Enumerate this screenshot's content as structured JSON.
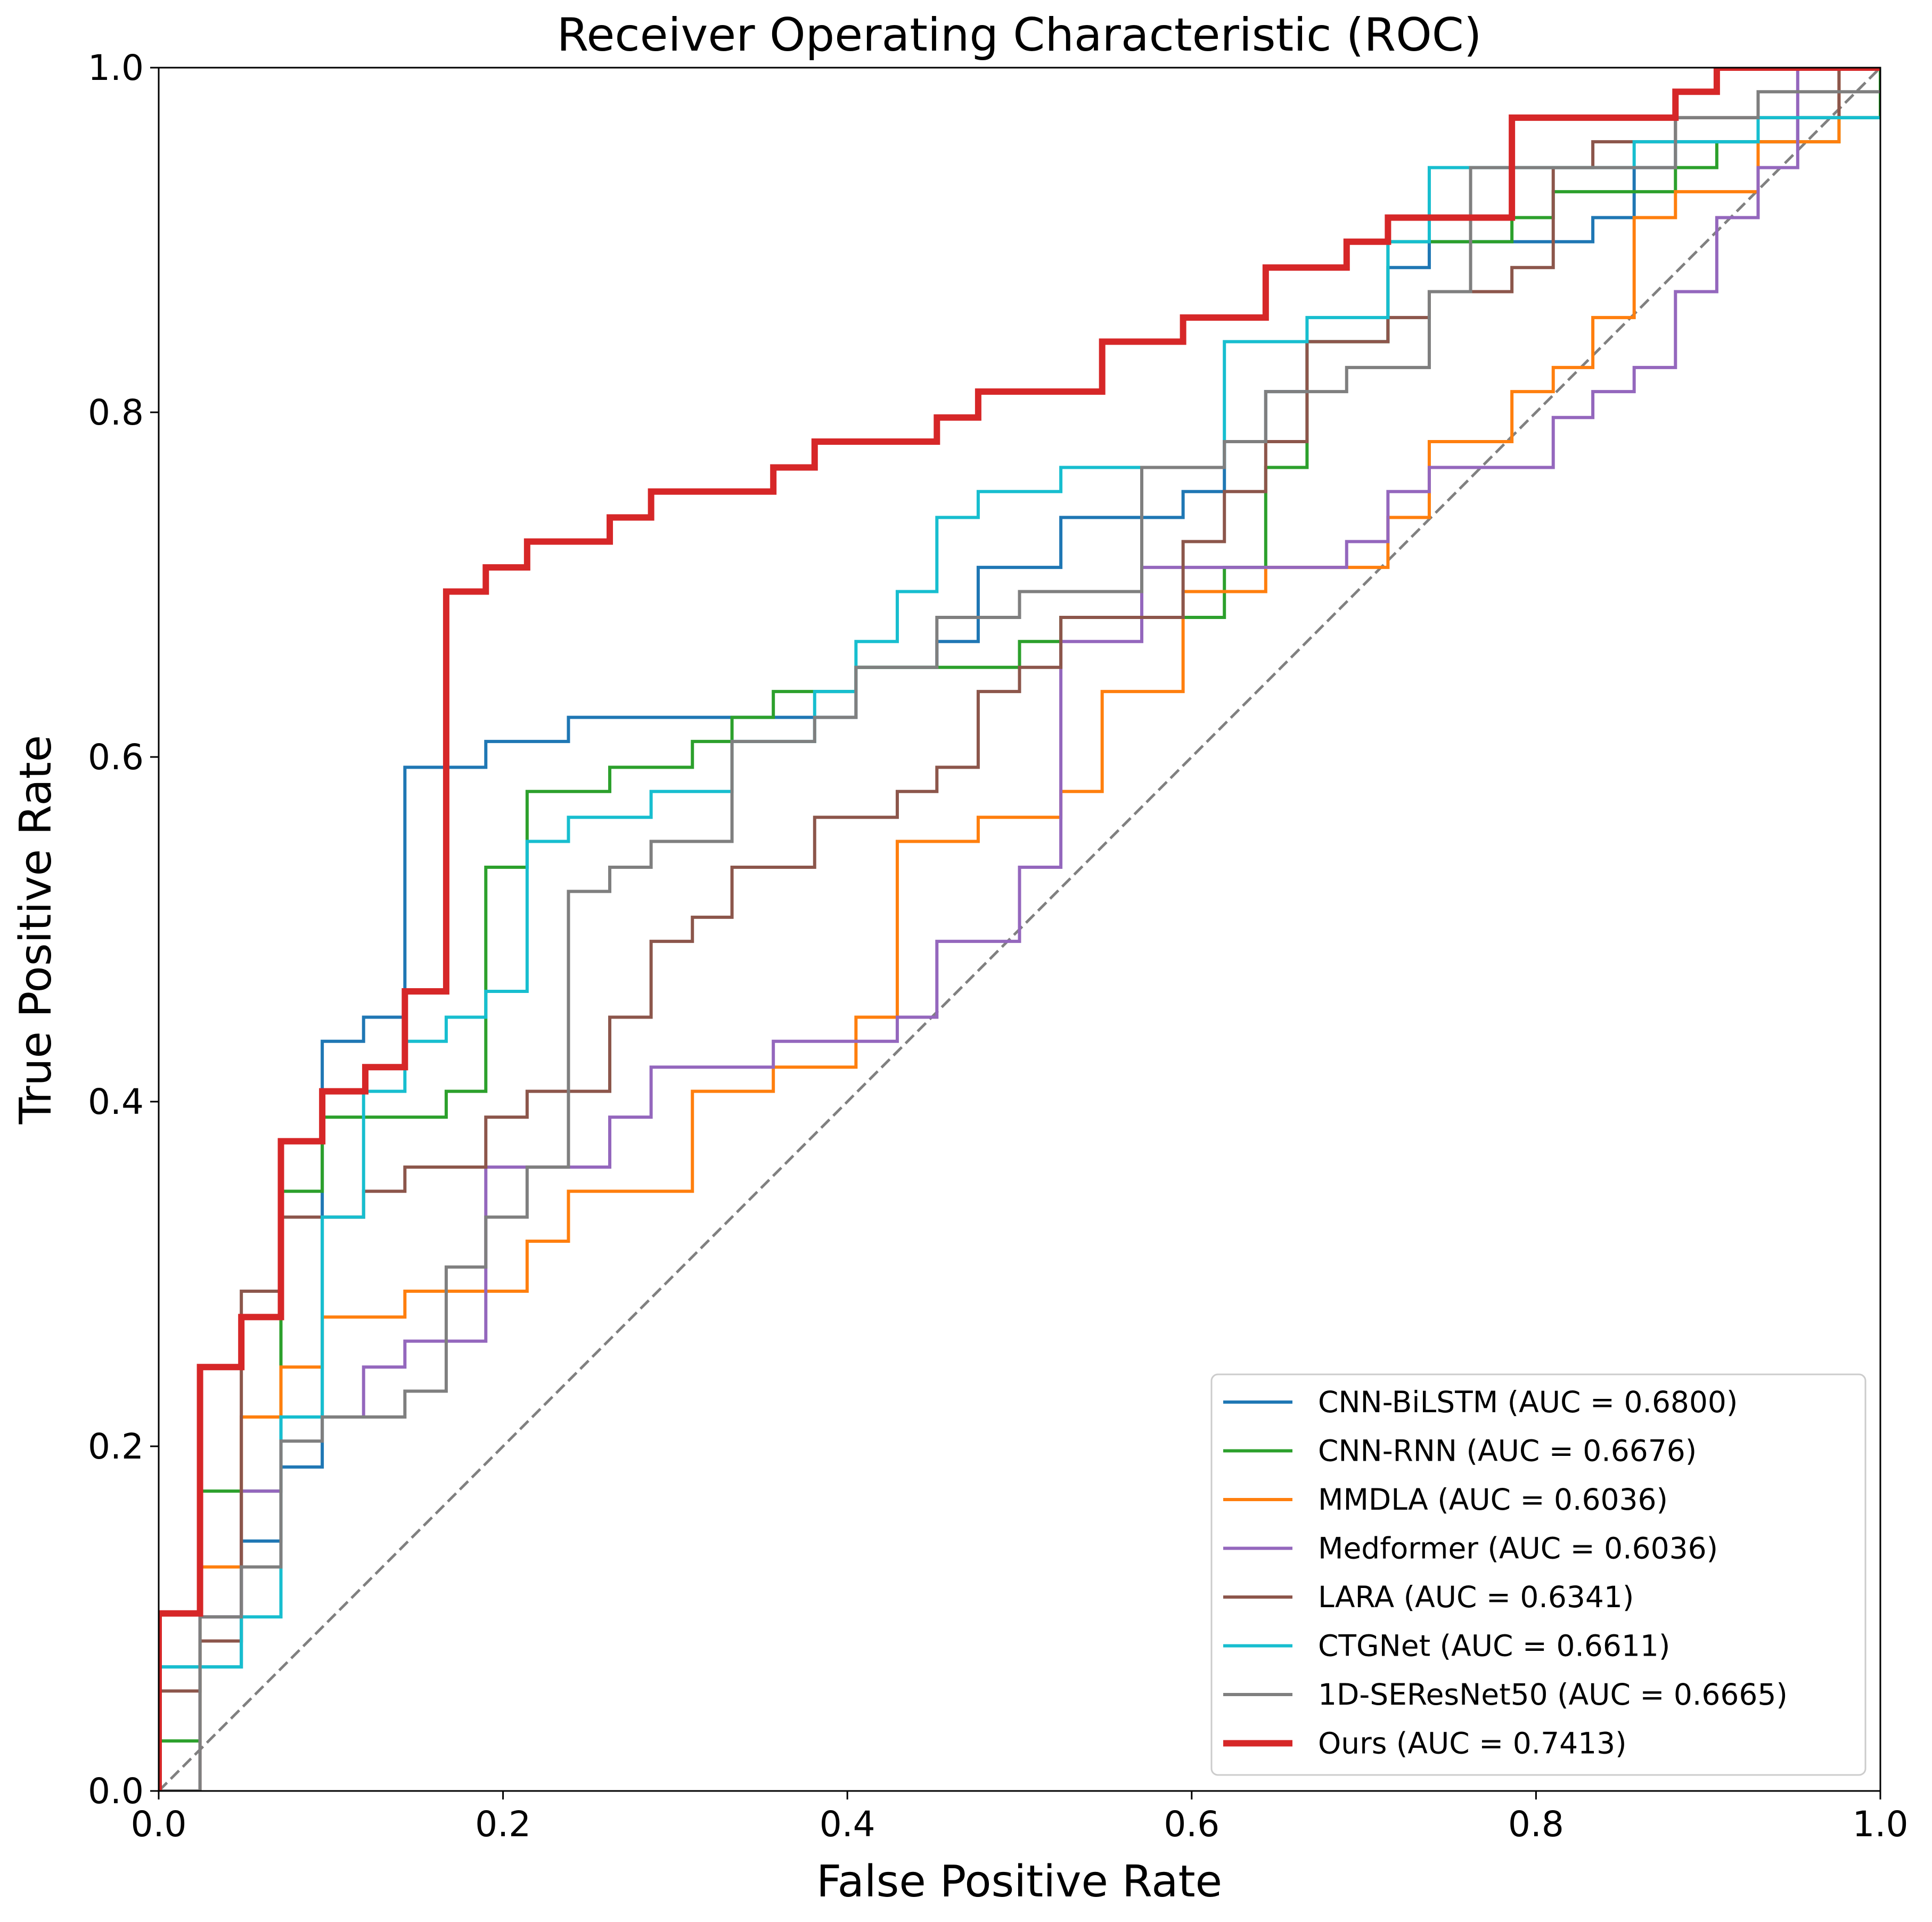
{
  "chart_data": {
    "type": "line",
    "title": "Receiver Operating Characteristic (ROC)",
    "xlabel": "False Positive Rate",
    "ylabel": "True Positive Rate",
    "xlim": [
      0,
      1
    ],
    "ylim": [
      0,
      1
    ],
    "xticks": [
      "0.0",
      "0.2",
      "0.4",
      "0.6",
      "0.8",
      "1.0"
    ],
    "yticks": [
      "0.0",
      "0.2",
      "0.4",
      "0.6",
      "0.8",
      "1.0"
    ],
    "grid": false,
    "legend_position": "lower-right",
    "diagonal": {
      "style": "dashed",
      "color": "#808080"
    },
    "series": [
      {
        "name": "CNN-BiLSTM (AUC = 0.6800)",
        "color": "#1f77b4",
        "width": "normal",
        "points": [
          [
            0,
            0
          ],
          [
            0,
            0.072
          ],
          [
            0.048,
            0.145
          ],
          [
            0.071,
            0.188
          ],
          [
            0.095,
            0.435
          ],
          [
            0.119,
            0.449
          ],
          [
            0.143,
            0.594
          ],
          [
            0.19,
            0.609
          ],
          [
            0.238,
            0.623
          ],
          [
            0.405,
            0.652
          ],
          [
            0.452,
            0.667
          ],
          [
            0.476,
            0.71
          ],
          [
            0.524,
            0.739
          ],
          [
            0.595,
            0.754
          ],
          [
            0.619,
            0.783
          ],
          [
            0.643,
            0.812
          ],
          [
            0.667,
            0.841
          ],
          [
            0.714,
            0.884
          ],
          [
            0.738,
            0.899
          ],
          [
            0.833,
            0.913
          ],
          [
            0.857,
            0.942
          ],
          [
            0.881,
            0.957
          ],
          [
            0.952,
            0.971
          ],
          [
            1,
            1
          ]
        ]
      },
      {
        "name": "CNN-RNN (AUC = 0.6676)",
        "color": "#2ca02c",
        "width": "normal",
        "points": [
          [
            0,
            0
          ],
          [
            0,
            0.029
          ],
          [
            0.024,
            0.058
          ],
          [
            0.024,
            0.174
          ],
          [
            0.071,
            0.348
          ],
          [
            0.095,
            0.391
          ],
          [
            0.167,
            0.406
          ],
          [
            0.19,
            0.536
          ],
          [
            0.214,
            0.58
          ],
          [
            0.262,
            0.594
          ],
          [
            0.31,
            0.609
          ],
          [
            0.333,
            0.623
          ],
          [
            0.357,
            0.638
          ],
          [
            0.405,
            0.652
          ],
          [
            0.5,
            0.667
          ],
          [
            0.524,
            0.681
          ],
          [
            0.619,
            0.71
          ],
          [
            0.643,
            0.768
          ],
          [
            0.667,
            0.841
          ],
          [
            0.714,
            0.899
          ],
          [
            0.786,
            0.913
          ],
          [
            0.81,
            0.928
          ],
          [
            0.881,
            0.942
          ],
          [
            0.905,
            0.957
          ],
          [
            0.976,
            0.971
          ],
          [
            1,
            1
          ]
        ]
      },
      {
        "name": "MMDLA (AUC = 0.6036)",
        "color": "#ff7f0e",
        "width": "normal",
        "points": [
          [
            0,
            0
          ],
          [
            0.024,
            0.13
          ],
          [
            0.048,
            0.217
          ],
          [
            0.071,
            0.246
          ],
          [
            0.095,
            0.275
          ],
          [
            0.143,
            0.29
          ],
          [
            0.214,
            0.319
          ],
          [
            0.238,
            0.348
          ],
          [
            0.31,
            0.406
          ],
          [
            0.357,
            0.42
          ],
          [
            0.405,
            0.449
          ],
          [
            0.429,
            0.551
          ],
          [
            0.476,
            0.565
          ],
          [
            0.524,
            0.58
          ],
          [
            0.548,
            0.638
          ],
          [
            0.595,
            0.696
          ],
          [
            0.643,
            0.71
          ],
          [
            0.714,
            0.739
          ],
          [
            0.738,
            0.783
          ],
          [
            0.786,
            0.812
          ],
          [
            0.81,
            0.826
          ],
          [
            0.833,
            0.855
          ],
          [
            0.857,
            0.913
          ],
          [
            0.881,
            0.928
          ],
          [
            0.929,
            0.957
          ],
          [
            0.976,
            1
          ],
          [
            1,
            1
          ]
        ]
      },
      {
        "name": "Medformer (AUC = 0.6036)",
        "color": "#9467bd",
        "width": "normal",
        "points": [
          [
            0,
            0
          ],
          [
            0.024,
            0.101
          ],
          [
            0.048,
            0.174
          ],
          [
            0.071,
            0.217
          ],
          [
            0.119,
            0.246
          ],
          [
            0.143,
            0.261
          ],
          [
            0.19,
            0.362
          ],
          [
            0.262,
            0.391
          ],
          [
            0.286,
            0.42
          ],
          [
            0.357,
            0.435
          ],
          [
            0.429,
            0.449
          ],
          [
            0.452,
            0.493
          ],
          [
            0.5,
            0.536
          ],
          [
            0.524,
            0.667
          ],
          [
            0.571,
            0.71
          ],
          [
            0.69,
            0.725
          ],
          [
            0.714,
            0.754
          ],
          [
            0.738,
            0.768
          ],
          [
            0.81,
            0.797
          ],
          [
            0.833,
            0.812
          ],
          [
            0.857,
            0.826
          ],
          [
            0.881,
            0.87
          ],
          [
            0.905,
            0.913
          ],
          [
            0.929,
            0.942
          ],
          [
            0.952,
            1
          ],
          [
            1,
            1
          ]
        ]
      },
      {
        "name": "LARA (AUC = 0.6341)",
        "color": "#8c564b",
        "width": "normal",
        "points": [
          [
            0,
            0
          ],
          [
            0,
            0.058
          ],
          [
            0.024,
            0.087
          ],
          [
            0.048,
            0.29
          ],
          [
            0.071,
            0.333
          ],
          [
            0.119,
            0.348
          ],
          [
            0.143,
            0.362
          ],
          [
            0.19,
            0.391
          ],
          [
            0.214,
            0.406
          ],
          [
            0.262,
            0.449
          ],
          [
            0.286,
            0.493
          ],
          [
            0.31,
            0.507
          ],
          [
            0.333,
            0.536
          ],
          [
            0.381,
            0.565
          ],
          [
            0.429,
            0.58
          ],
          [
            0.452,
            0.594
          ],
          [
            0.476,
            0.638
          ],
          [
            0.5,
            0.652
          ],
          [
            0.524,
            0.681
          ],
          [
            0.595,
            0.725
          ],
          [
            0.619,
            0.754
          ],
          [
            0.643,
            0.783
          ],
          [
            0.667,
            0.841
          ],
          [
            0.714,
            0.855
          ],
          [
            0.738,
            0.87
          ],
          [
            0.786,
            0.884
          ],
          [
            0.81,
            0.942
          ],
          [
            0.833,
            0.957
          ],
          [
            0.881,
            0.971
          ],
          [
            0.976,
            1
          ],
          [
            1,
            1
          ]
        ]
      },
      {
        "name": "CTGNet (AUC = 0.6611)",
        "color": "#17becf",
        "width": "normal",
        "points": [
          [
            0,
            0
          ],
          [
            0,
            0.072
          ],
          [
            0.048,
            0.101
          ],
          [
            0.071,
            0.217
          ],
          [
            0.095,
            0.333
          ],
          [
            0.119,
            0.406
          ],
          [
            0.143,
            0.435
          ],
          [
            0.167,
            0.449
          ],
          [
            0.19,
            0.464
          ],
          [
            0.214,
            0.551
          ],
          [
            0.238,
            0.565
          ],
          [
            0.286,
            0.58
          ],
          [
            0.333,
            0.609
          ],
          [
            0.381,
            0.638
          ],
          [
            0.405,
            0.667
          ],
          [
            0.429,
            0.696
          ],
          [
            0.452,
            0.739
          ],
          [
            0.476,
            0.754
          ],
          [
            0.524,
            0.768
          ],
          [
            0.619,
            0.841
          ],
          [
            0.667,
            0.855
          ],
          [
            0.714,
            0.899
          ],
          [
            0.738,
            0.942
          ],
          [
            0.857,
            0.957
          ],
          [
            0.929,
            0.971
          ],
          [
            1,
            0.971
          ]
        ]
      },
      {
        "name": "1D-SEResNet50 (AUC = 0.6665)",
        "color": "#7f7f7f",
        "width": "normal",
        "points": [
          [
            0,
            0
          ],
          [
            0.024,
            0.101
          ],
          [
            0.048,
            0.13
          ],
          [
            0.071,
            0.203
          ],
          [
            0.095,
            0.217
          ],
          [
            0.143,
            0.232
          ],
          [
            0.167,
            0.304
          ],
          [
            0.19,
            0.333
          ],
          [
            0.214,
            0.362
          ],
          [
            0.238,
            0.522
          ],
          [
            0.262,
            0.536
          ],
          [
            0.286,
            0.551
          ],
          [
            0.333,
            0.609
          ],
          [
            0.381,
            0.623
          ],
          [
            0.405,
            0.652
          ],
          [
            0.452,
            0.681
          ],
          [
            0.5,
            0.696
          ],
          [
            0.571,
            0.768
          ],
          [
            0.619,
            0.783
          ],
          [
            0.643,
            0.812
          ],
          [
            0.69,
            0.826
          ],
          [
            0.738,
            0.87
          ],
          [
            0.762,
            0.942
          ],
          [
            0.881,
            0.971
          ],
          [
            0.929,
            0.986
          ],
          [
            1,
            0.986
          ]
        ]
      },
      {
        "name": "Ours (AUC = 0.7413)",
        "color": "#d62728",
        "width": "thick",
        "points": [
          [
            0,
            0
          ],
          [
            0,
            0.103
          ],
          [
            0.024,
            0.246
          ],
          [
            0.048,
            0.275
          ],
          [
            0.071,
            0.377
          ],
          [
            0.095,
            0.406
          ],
          [
            0.12,
            0.42
          ],
          [
            0.143,
            0.464
          ],
          [
            0.167,
            0.696
          ],
          [
            0.19,
            0.71
          ],
          [
            0.214,
            0.725
          ],
          [
            0.262,
            0.739
          ],
          [
            0.286,
            0.754
          ],
          [
            0.357,
            0.768
          ],
          [
            0.381,
            0.783
          ],
          [
            0.452,
            0.797
          ],
          [
            0.476,
            0.812
          ],
          [
            0.548,
            0.841
          ],
          [
            0.595,
            0.855
          ],
          [
            0.643,
            0.884
          ],
          [
            0.69,
            0.899
          ],
          [
            0.714,
            0.913
          ],
          [
            0.786,
            0.971
          ],
          [
            0.881,
            0.986
          ],
          [
            0.905,
            1
          ],
          [
            1,
            1
          ]
        ]
      }
    ]
  }
}
